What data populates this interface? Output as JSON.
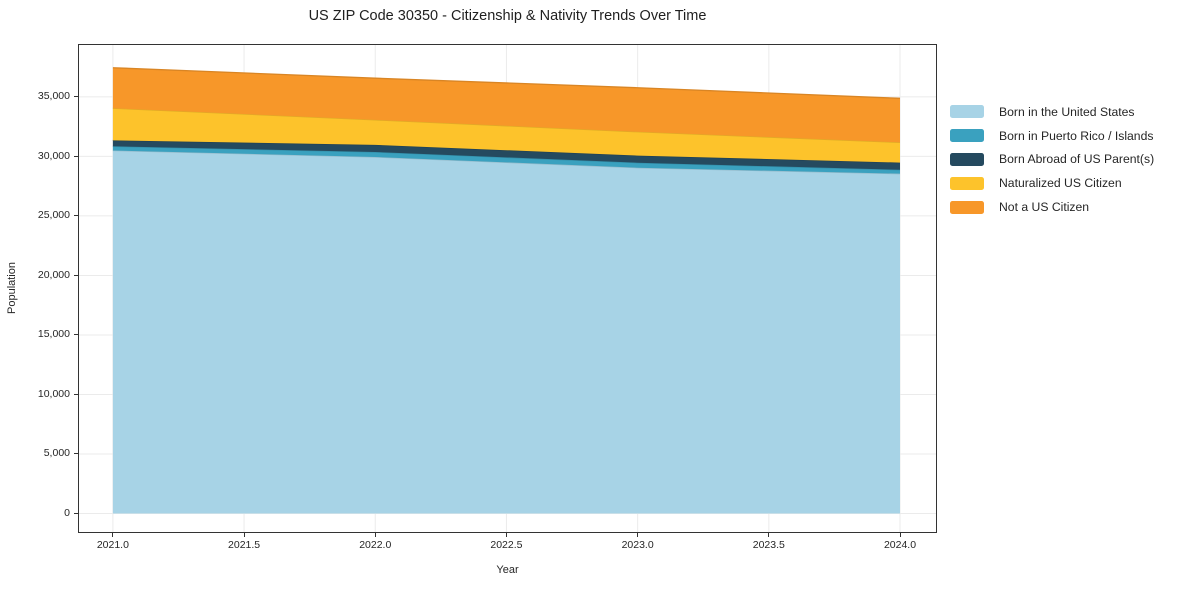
{
  "figure": {
    "background": "#ffffff"
  },
  "chart_data": {
    "type": "area",
    "stacked": true,
    "title": "US ZIP Code 30350 - Citizenship & Nativity Trends Over Time",
    "xlabel": "Year",
    "ylabel": "Population",
    "x": [
      2021,
      2022,
      2023,
      2024
    ],
    "series": [
      {
        "name": "Born in the United States",
        "color": "#A7D3E6",
        "values": [
          30500,
          29950,
          29050,
          28550
        ]
      },
      {
        "name": "Born in Puerto Rico / Islands",
        "color": "#3AA1BF",
        "values": [
          350,
          420,
          420,
          330
        ]
      },
      {
        "name": "Born Abroad of US Parent(s)",
        "color": "#254A5F",
        "values": [
          500,
          600,
          600,
          600
        ]
      },
      {
        "name": "Naturalized US Citizen",
        "color": "#FDC32B",
        "values": [
          2700,
          2100,
          2000,
          1700
        ]
      },
      {
        "name": "Not a US Citizen",
        "color": "#F79729",
        "values": [
          3400,
          3500,
          3700,
          3700
        ]
      }
    ],
    "stack_totals": [
      37450,
      36570,
      35770,
      34880
    ],
    "x_ticks": [
      {
        "value": 2021.0,
        "label": "2021.0"
      },
      {
        "value": 2021.5,
        "label": "2021.5"
      },
      {
        "value": 2022.0,
        "label": "2022.0"
      },
      {
        "value": 2022.5,
        "label": "2022.5"
      },
      {
        "value": 2023.0,
        "label": "2023.0"
      },
      {
        "value": 2023.5,
        "label": "2023.5"
      },
      {
        "value": 2024.0,
        "label": "2024.0"
      }
    ],
    "y_ticks": [
      {
        "value": 0,
        "label": "0"
      },
      {
        "value": 5000,
        "label": "5,000"
      },
      {
        "value": 10000,
        "label": "10,000"
      },
      {
        "value": 15000,
        "label": "15,000"
      },
      {
        "value": 20000,
        "label": "20,000"
      },
      {
        "value": 25000,
        "label": "25,000"
      },
      {
        "value": 30000,
        "label": "30,000"
      },
      {
        "value": 35000,
        "label": "35,000"
      }
    ],
    "xlim": [
      2020.867,
      2024.141
    ],
    "ylim": [
      -1638,
      39444
    ],
    "grid": true,
    "legend_position": "right",
    "colors": {
      "grid": "#ebebeb",
      "spine": "#333333",
      "text": "#262626",
      "background": "#ffffff"
    }
  }
}
